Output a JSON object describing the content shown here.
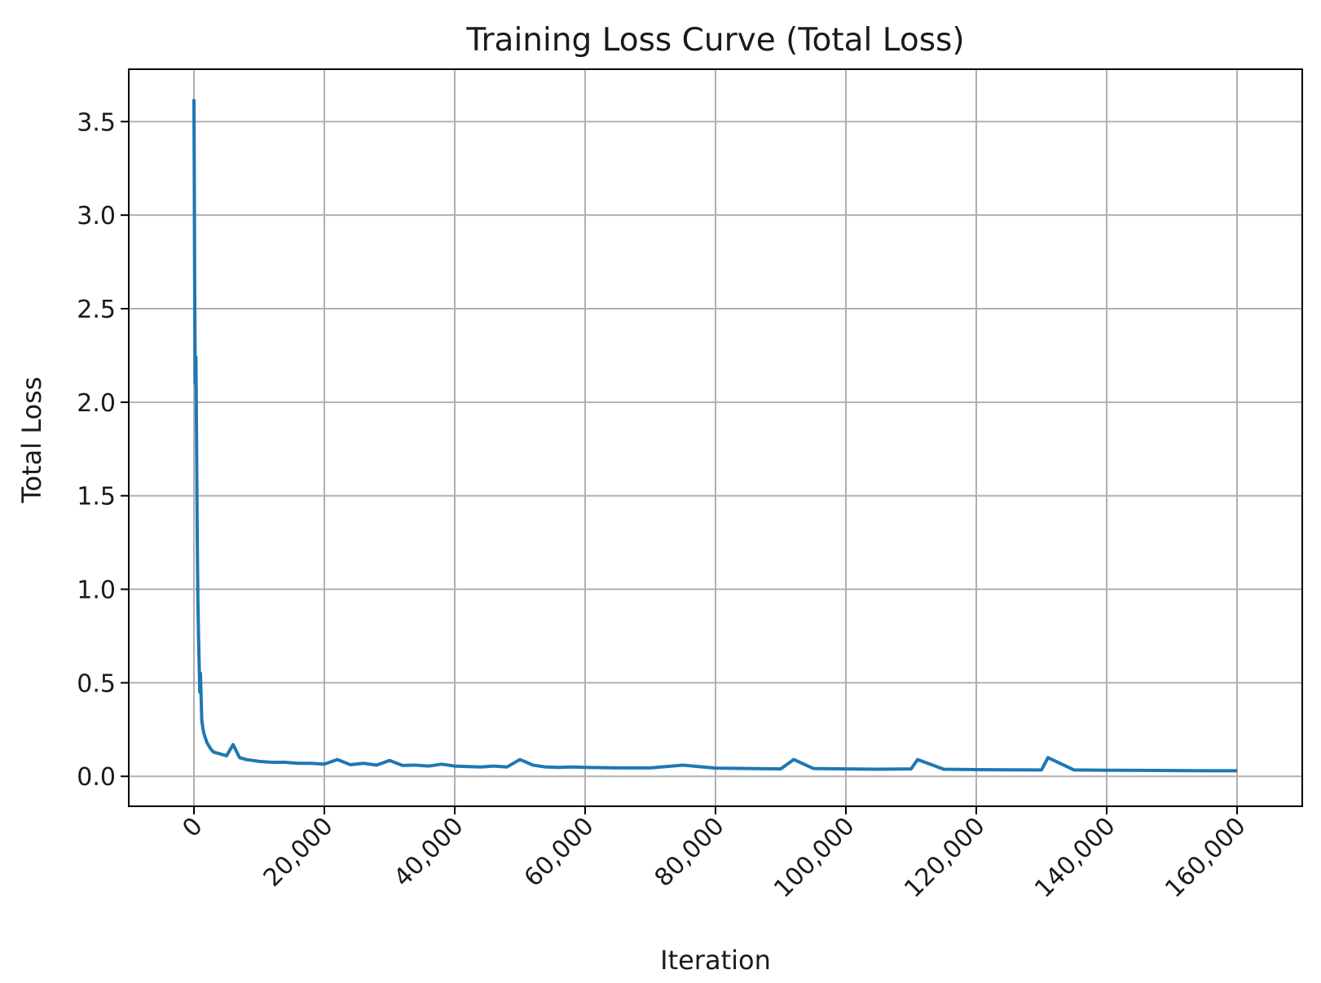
{
  "chart_data": {
    "type": "line",
    "title": "Training Loss Curve (Total Loss)",
    "xlabel": "Iteration",
    "ylabel": "Total Loss",
    "xlim": [
      -10000,
      170000
    ],
    "ylim": [
      -0.16,
      3.78
    ],
    "xticks": [
      0,
      20000,
      40000,
      60000,
      80000,
      100000,
      120000,
      140000,
      160000
    ],
    "xtick_labels": [
      "0",
      "20,000",
      "40,000",
      "60,000",
      "80,000",
      "100,000",
      "120,000",
      "140,000",
      "160,000"
    ],
    "yticks": [
      0.0,
      0.5,
      1.0,
      1.5,
      2.0,
      2.5,
      3.0,
      3.5
    ],
    "ytick_labels": [
      "0.0",
      "0.5",
      "1.0",
      "1.5",
      "2.0",
      "2.5",
      "3.0",
      "3.5"
    ],
    "grid": true,
    "line_color": "#1f77b4",
    "series": [
      {
        "x": [
          0,
          50,
          100,
          200,
          300,
          400,
          500,
          600,
          700,
          800,
          900,
          1000,
          1200,
          1400,
          1600,
          2000,
          2500,
          3000,
          4000,
          5000,
          6000,
          7000,
          8000,
          9000,
          10000,
          12000,
          14000,
          16000,
          18000,
          20000,
          22000,
          24000,
          26000,
          28000,
          30000,
          32000,
          34000,
          36000,
          38000,
          40000,
          42000,
          44000,
          46000,
          48000,
          50000,
          52000,
          54000,
          56000,
          58000,
          60000,
          65000,
          70000,
          75000,
          80000,
          85000,
          90000,
          92000,
          95000,
          100000,
          105000,
          110000,
          111000,
          115000,
          120000,
          125000,
          130000,
          131000,
          135000,
          140000,
          145000,
          150000,
          155000,
          160000
        ],
        "y": [
          3.62,
          3.2,
          2.7,
          2.1,
          2.24,
          1.8,
          1.3,
          0.95,
          0.75,
          0.6,
          0.45,
          0.55,
          0.3,
          0.25,
          0.22,
          0.18,
          0.15,
          0.13,
          0.12,
          0.11,
          0.17,
          0.1,
          0.09,
          0.085,
          0.08,
          0.075,
          0.075,
          0.07,
          0.07,
          0.065,
          0.09,
          0.062,
          0.07,
          0.06,
          0.085,
          0.058,
          0.06,
          0.055,
          0.065,
          0.055,
          0.052,
          0.05,
          0.055,
          0.05,
          0.09,
          0.06,
          0.05,
          0.048,
          0.05,
          0.048,
          0.045,
          0.045,
          0.06,
          0.044,
          0.042,
          0.04,
          0.09,
          0.042,
          0.04,
          0.038,
          0.04,
          0.09,
          0.038,
          0.036,
          0.035,
          0.034,
          0.1,
          0.034,
          0.033,
          0.032,
          0.031,
          0.03,
          0.03
        ]
      }
    ]
  }
}
